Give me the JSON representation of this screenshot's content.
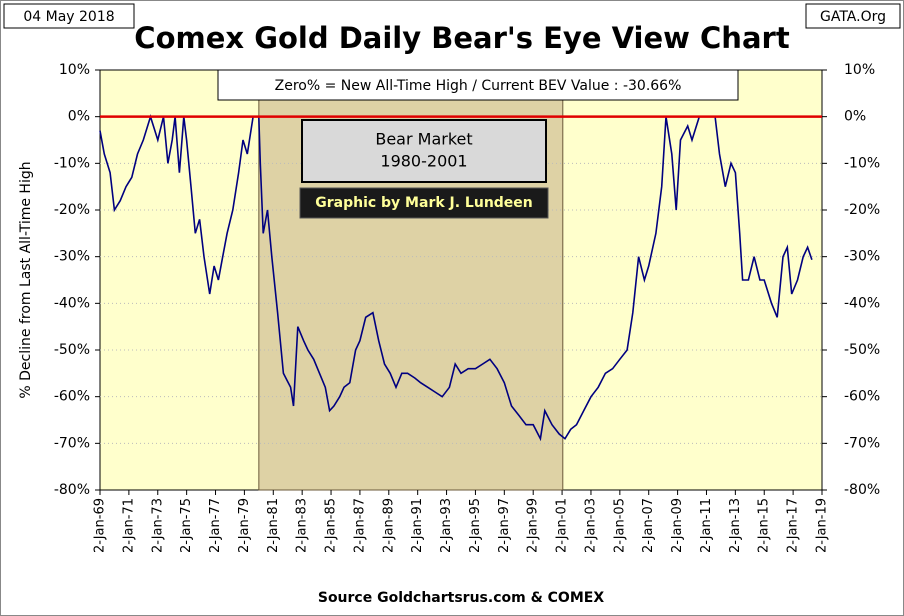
{
  "chart_data": {
    "type": "line",
    "title": "Comex Gold Daily Bear's Eye View Chart",
    "date_label": "04 May 2018",
    "site_label": "GATA.Org",
    "annotation": "Zero% = New All-Time High  / Current BEV Value :  -30.66%",
    "shade_title": "Bear Market",
    "shade_years": "1980-2001",
    "credit": "Graphic by Mark J. Lundeen",
    "shaded_range": [
      1980,
      2001.05
    ],
    "source": "Source Goldchartsrus.com & COMEX",
    "y_label": "% Decline from Last All-Time High",
    "series": [
      {
        "name": "BEV",
        "color": "#000080",
        "x": [
          1969.0,
          1969.3,
          1969.7,
          1970.0,
          1970.4,
          1970.8,
          1971.2,
          1971.6,
          1972.0,
          1972.5,
          1973.0,
          1973.4,
          1973.7,
          1974.0,
          1974.2,
          1974.5,
          1974.8,
          1975.0,
          1975.3,
          1975.6,
          1975.9,
          1976.2,
          1976.6,
          1976.9,
          1977.2,
          1977.5,
          1977.8,
          1978.2,
          1978.6,
          1978.9,
          1979.2,
          1979.6,
          1980.0,
          1980.1,
          1980.3,
          1980.6,
          1980.9,
          1981.3,
          1981.7,
          1982.2,
          1982.4,
          1982.7,
          1983.1,
          1983.4,
          1983.8,
          1984.2,
          1984.6,
          1984.9,
          1985.2,
          1985.6,
          1985.9,
          1986.3,
          1986.7,
          1987.0,
          1987.4,
          1987.9,
          1988.3,
          1988.7,
          1989.1,
          1989.5,
          1989.9,
          1990.3,
          1990.8,
          1991.2,
          1991.7,
          1992.2,
          1992.7,
          1993.2,
          1993.6,
          1994.0,
          1994.5,
          1995.0,
          1995.5,
          1996.0,
          1996.5,
          1997.0,
          1997.5,
          1998.0,
          1998.5,
          1999.0,
          1999.5,
          1999.8,
          2000.3,
          2000.8,
          2001.2,
          2001.6,
          2002.0,
          2002.5,
          2003.0,
          2003.5,
          2004.0,
          2004.5,
          2005.0,
          2005.5,
          2005.9,
          2006.3,
          2006.7,
          2007.0,
          2007.5,
          2007.9,
          2008.2,
          2008.6,
          2008.9,
          2009.2,
          2009.7,
          2010.0,
          2010.5,
          2011.0,
          2011.6,
          2011.9,
          2012.3,
          2012.7,
          2013.0,
          2013.3,
          2013.5,
          2013.9,
          2014.3,
          2014.7,
          2015.0,
          2015.5,
          2015.9,
          2016.3,
          2016.6,
          2016.9,
          2017.3,
          2017.7,
          2018.0,
          2018.3
        ],
        "values": [
          -3,
          -8,
          -12,
          -20,
          -18,
          -15,
          -13,
          -8,
          -5,
          0,
          -5,
          0,
          -10,
          -5,
          0,
          -12,
          0,
          -5,
          -15,
          -25,
          -22,
          -30,
          -38,
          -32,
          -35,
          -30,
          -25,
          -20,
          -12,
          -5,
          -8,
          0,
          0,
          -10,
          -25,
          -20,
          -30,
          -42,
          -55,
          -58,
          -62,
          -45,
          -48,
          -50,
          -52,
          -55,
          -58,
          -63,
          -62,
          -60,
          -58,
          -57,
          -50,
          -48,
          -43,
          -42,
          -48,
          -53,
          -55,
          -58,
          -55,
          -55,
          -56,
          -57,
          -58,
          -59,
          -60,
          -58,
          -53,
          -55,
          -54,
          -54,
          -53,
          -52,
          -54,
          -57,
          -62,
          -64,
          -66,
          -66,
          -69,
          -63,
          -66,
          -68,
          -69,
          -67,
          -66,
          -63,
          -60,
          -58,
          -55,
          -54,
          -52,
          -50,
          -42,
          -30,
          -35,
          -32,
          -25,
          -15,
          0,
          -8,
          -20,
          -5,
          -2,
          -5,
          0,
          0,
          0,
          -8,
          -15,
          -10,
          -12,
          -25,
          -35,
          -35,
          -30,
          -35,
          -35,
          -40,
          -43,
          -30,
          -28,
          -38,
          -35,
          -30,
          -28,
          -30.66
        ]
      }
    ],
    "xlim": [
      1969,
      2019
    ],
    "xticks": [
      {
        "value": 1969,
        "label": "2-Jan-69"
      },
      {
        "value": 1971,
        "label": "2-Jan-71"
      },
      {
        "value": 1973,
        "label": "2-Jan-73"
      },
      {
        "value": 1975,
        "label": "2-Jan-75"
      },
      {
        "value": 1977,
        "label": "2-Jan-77"
      },
      {
        "value": 1979,
        "label": "2-Jan-79"
      },
      {
        "value": 1981,
        "label": "2-Jan-81"
      },
      {
        "value": 1983,
        "label": "2-Jan-83"
      },
      {
        "value": 1985,
        "label": "2-Jan-85"
      },
      {
        "value": 1987,
        "label": "2-Jan-87"
      },
      {
        "value": 1989,
        "label": "2-Jan-89"
      },
      {
        "value": 1991,
        "label": "2-Jan-91"
      },
      {
        "value": 1993,
        "label": "2-Jan-93"
      },
      {
        "value": 1995,
        "label": "2-Jan-95"
      },
      {
        "value": 1997,
        "label": "2-Jan-97"
      },
      {
        "value": 1999,
        "label": "2-Jan-99"
      },
      {
        "value": 2001,
        "label": "2-Jan-01"
      },
      {
        "value": 2003,
        "label": "2-Jan-03"
      },
      {
        "value": 2005,
        "label": "2-Jan-05"
      },
      {
        "value": 2007,
        "label": "2-Jan-07"
      },
      {
        "value": 2009,
        "label": "2-Jan-09"
      },
      {
        "value": 2011,
        "label": "2-Jan-11"
      },
      {
        "value": 2013,
        "label": "2-Jan-13"
      },
      {
        "value": 2015,
        "label": "2-Jan-15"
      },
      {
        "value": 2017,
        "label": "2-Jan-17"
      },
      {
        "value": 2019,
        "label": "2-Jan-19"
      }
    ],
    "ylim": [
      -80,
      10
    ],
    "yticks": [
      {
        "value": 10,
        "label": "10%"
      },
      {
        "value": 0,
        "label": "0%"
      },
      {
        "value": -10,
        "label": "-10%"
      },
      {
        "value": -20,
        "label": "-20%"
      },
      {
        "value": -30,
        "label": "-30%"
      },
      {
        "value": -40,
        "label": "-40%"
      },
      {
        "value": -50,
        "label": "-50%"
      },
      {
        "value": -60,
        "label": "-60%"
      },
      {
        "value": -70,
        "label": "-70%"
      },
      {
        "value": -80,
        "label": "-80%"
      }
    ],
    "grid": true
  }
}
